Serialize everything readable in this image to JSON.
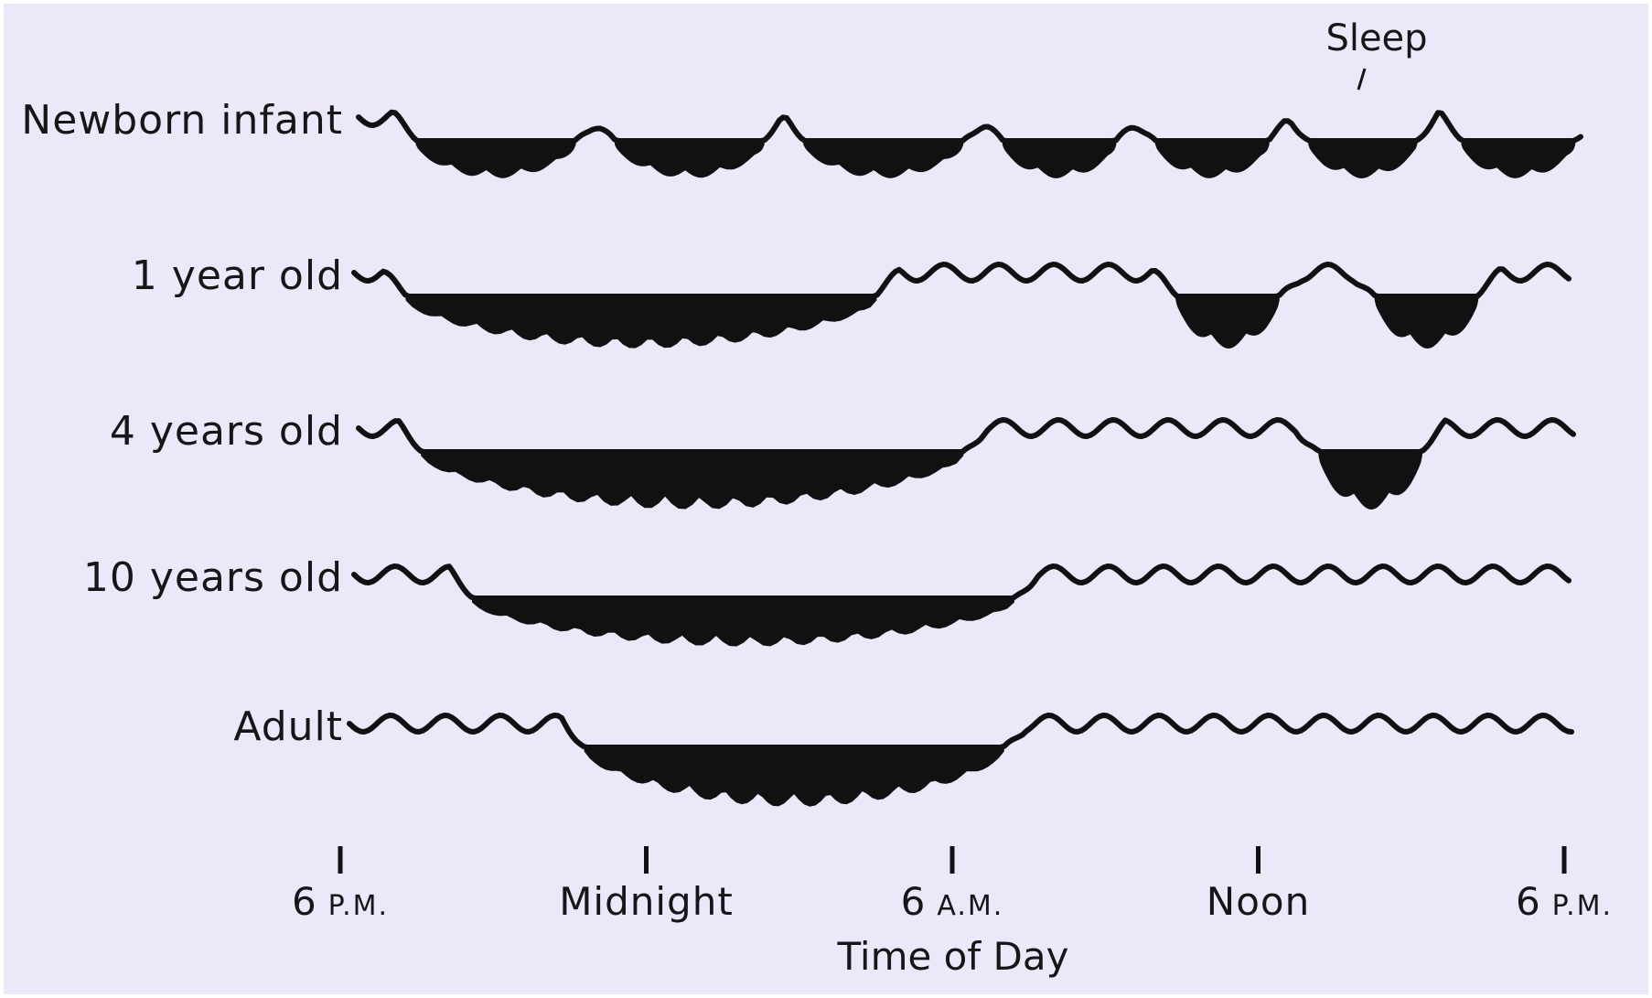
{
  "colors": {
    "background": "#ede7fa",
    "ink": "#111111"
  },
  "annotation": "Sleep",
  "x_axis": {
    "title": "Time of Day",
    "ticks": [
      {
        "hour": 18,
        "main": "6",
        "suffix": "P.M."
      },
      {
        "hour": 24,
        "main": "Midnight",
        "suffix": ""
      },
      {
        "hour": 30,
        "main": "6",
        "suffix": "A.M."
      },
      {
        "hour": 36,
        "main": "Noon",
        "suffix": ""
      },
      {
        "hour": 42,
        "main": "6",
        "suffix": "P.M."
      }
    ]
  },
  "chart_data": {
    "type": "timeline",
    "x_unit": "hours (18 = 6 P.M., 24 = Midnight, 30 = 6 A.M., 36 = Noon, 42 = 6 P.M.)",
    "x_range": [
      18,
      42
    ],
    "rows": [
      {
        "label": "Newborn infant",
        "sleep_periods": [
          [
            19.5,
            22.6
          ],
          [
            23.4,
            26.3
          ],
          [
            27.1,
            30.2
          ],
          [
            31.0,
            33.2
          ],
          [
            34.0,
            36.2
          ],
          [
            37.0,
            39.1
          ],
          [
            40.0,
            42.2
          ]
        ]
      },
      {
        "label": "1 year old",
        "sleep_periods": [
          [
            19.3,
            28.5
          ],
          [
            34.4,
            36.4
          ],
          [
            38.3,
            40.3
          ]
        ]
      },
      {
        "label": "4 years old",
        "sleep_periods": [
          [
            19.6,
            30.2
          ],
          [
            37.2,
            39.2
          ]
        ]
      },
      {
        "label": "10 years old",
        "sleep_periods": [
          [
            20.6,
            31.2
          ]
        ]
      },
      {
        "label": "Adult",
        "sleep_periods": [
          [
            22.8,
            31.0
          ]
        ]
      }
    ]
  }
}
